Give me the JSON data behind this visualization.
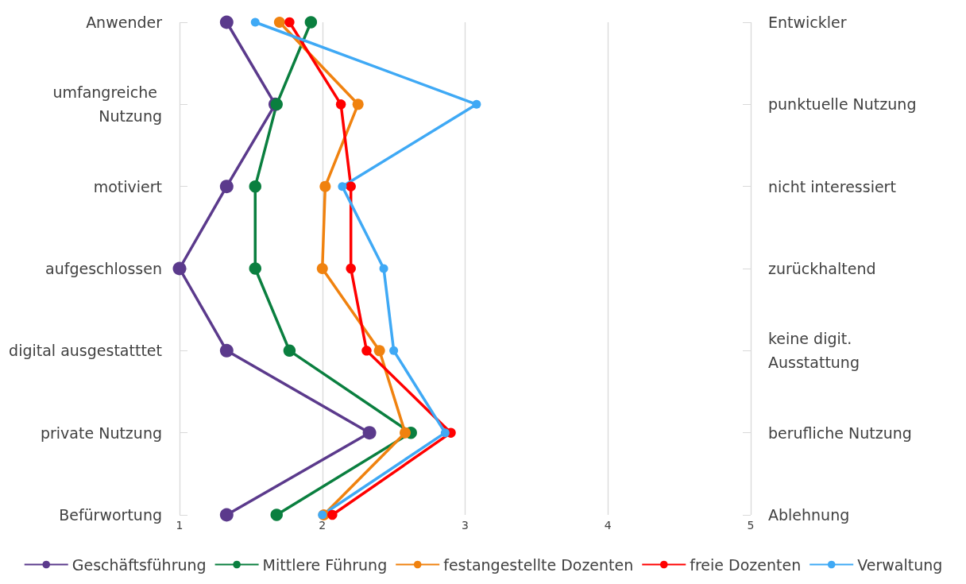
{
  "chart_data": {
    "type": "line",
    "orientation": "horizontal",
    "categories": [
      "Anwender",
      "umfangreiche Nutzung",
      "motiviert",
      "aufgeschlossen",
      "digital ausgestatttet",
      "private Nutzung",
      "Befürwortung"
    ],
    "y2_categories": [
      "Entwickler",
      "punktuelle Nutzung",
      "nicht interessiert",
      "zurückhaltend",
      "keine digit. Ausstattung",
      "berufliche Nutzung",
      "Ablehnung"
    ],
    "series": [
      {
        "name": "Geschäftsführung",
        "color": "#5b3a8c",
        "values": [
          1.33,
          1.67,
          1.33,
          1.0,
          1.33,
          2.33,
          1.33
        ]
      },
      {
        "name": "Mittlere Führung",
        "color": "#0a7f3f",
        "values": [
          1.92,
          1.68,
          1.53,
          1.53,
          1.77,
          2.62,
          1.68
        ]
      },
      {
        "name": "festangestellte Dozenten",
        "color": "#f0820f",
        "values": [
          1.7,
          2.25,
          2.02,
          2.0,
          2.4,
          2.58,
          2.01
        ]
      },
      {
        "name": "freie Dozenten",
        "color": "#ff0000",
        "values": [
          1.77,
          2.13,
          2.2,
          2.2,
          2.31,
          2.9,
          2.07
        ]
      },
      {
        "name": "Verwaltung",
        "color": "#3fa9f5",
        "values": [
          1.53,
          3.08,
          2.14,
          2.43,
          2.5,
          2.86,
          2.0
        ]
      }
    ],
    "xlim": [
      1,
      5
    ],
    "xticks": [
      1,
      2,
      3,
      4,
      5
    ],
    "grid": "x",
    "legend": "bottom",
    "marker": "circle"
  }
}
